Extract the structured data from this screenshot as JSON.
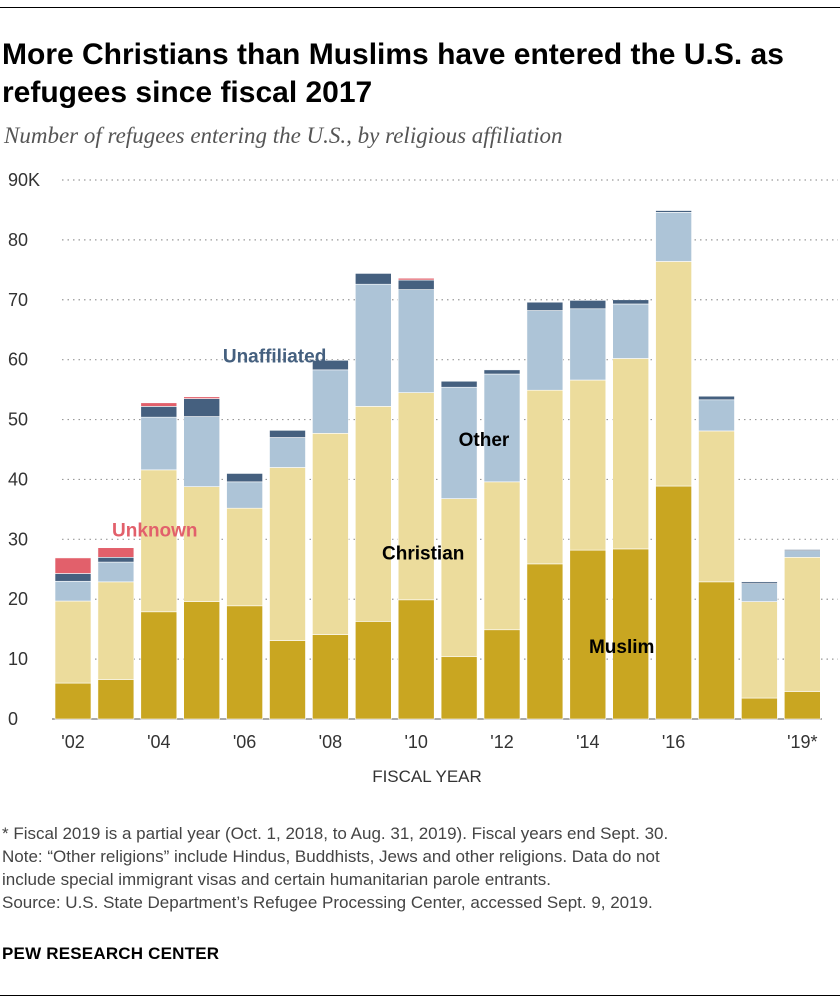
{
  "title": "More Christians than Muslims have entered the U.S. as refugees since fiscal 2017",
  "subtitle": "Number of refugees entering the U.S., by religious affiliation",
  "notes": [
    "* Fiscal 2019 is a partial year (Oct. 1, 2018, to Aug. 31, 2019). Fiscal years end Sept. 30.",
    "Note: “Other religions” include Hindus, Buddhists, Jews and other religions. Data do not",
    "include special immigrant visas and certain humanitarian parole entrants.",
    "Source: U.S. State Department’s Refugee Processing Center, accessed Sept. 9, 2019."
  ],
  "brand": "PEW RESEARCH CENTER",
  "chart_data": {
    "type": "bar",
    "stacked": true,
    "categories": [
      "2002",
      "2003",
      "2004",
      "2005",
      "2006",
      "2007",
      "2008",
      "2009",
      "2010",
      "2011",
      "2012",
      "2013",
      "2014",
      "2015",
      "2016",
      "2017",
      "2018",
      "2019"
    ],
    "x_tick_labels": [
      "'02",
      "",
      "'04",
      "",
      "'06",
      "",
      "'08",
      "",
      "'10",
      "",
      "'12",
      "",
      "'14",
      "",
      "'16",
      "",
      "",
      "'19*"
    ],
    "xlabel": "FISCAL YEAR",
    "ylabel": "",
    "ylim": [
      0,
      90
    ],
    "y_ticks": [
      0,
      10,
      20,
      30,
      40,
      50,
      60,
      70,
      80,
      90
    ],
    "y_tick_labels": [
      "0",
      "10",
      "20",
      "30",
      "40",
      "50",
      "60",
      "70",
      "80",
      "90K"
    ],
    "grid": "horizontal dotted",
    "series": [
      {
        "name": "Muslim",
        "color": "#c9a621",
        "values": [
          6.0,
          6.6,
          17.9,
          19.6,
          18.9,
          13.1,
          14.1,
          16.3,
          19.9,
          10.4,
          14.9,
          25.9,
          28.2,
          28.4,
          38.9,
          22.9,
          3.5,
          4.6
        ]
      },
      {
        "name": "Christian",
        "color": "#ecdc9c",
        "values": [
          13.7,
          16.3,
          23.7,
          19.2,
          16.3,
          28.9,
          33.6,
          35.9,
          34.6,
          26.4,
          24.7,
          29.0,
          28.4,
          31.8,
          37.5,
          25.2,
          16.1,
          22.4
        ]
      },
      {
        "name": "Other",
        "color": "#adc4d7",
        "values": [
          3.3,
          3.3,
          8.8,
          11.7,
          4.4,
          5.0,
          10.6,
          20.4,
          17.2,
          18.6,
          18.0,
          13.3,
          11.9,
          9.1,
          8.2,
          5.2,
          3.0,
          1.1
        ]
      },
      {
        "name": "Unaffiliated",
        "color": "#45607f",
        "values": [
          1.3,
          0.8,
          1.8,
          3.0,
          1.4,
          1.2,
          1.6,
          1.8,
          1.6,
          1.0,
          0.7,
          1.4,
          1.4,
          0.7,
          0.3,
          0.6,
          0.3,
          0.2
        ]
      },
      {
        "name": "Unknown",
        "color": "#e2606b",
        "values": [
          2.6,
          1.6,
          0.6,
          0.3,
          0,
          0,
          0,
          0,
          0.3,
          0,
          0,
          0,
          0,
          0,
          0,
          0,
          0,
          0
        ]
      }
    ],
    "annotations": [
      {
        "text": "Unknown",
        "series": "Unknown",
        "color": "#e2606b"
      },
      {
        "text": "Unaffiliated",
        "series": "Unaffiliated",
        "color": "#45607f"
      },
      {
        "text": "Other",
        "series": "Other",
        "color": "#000000"
      },
      {
        "text": "Christian",
        "series": "Christian",
        "color": "#000000"
      },
      {
        "text": "Muslim",
        "series": "Muslim",
        "color": "#000000"
      }
    ]
  }
}
